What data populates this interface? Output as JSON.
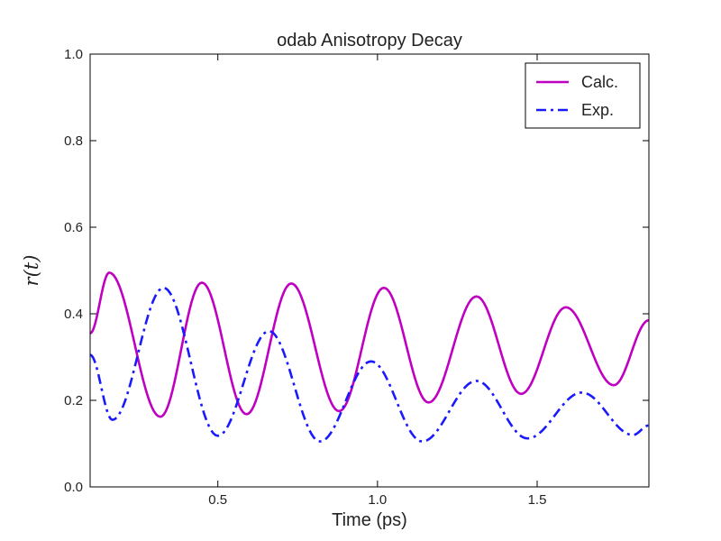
{
  "chart_data": {
    "type": "line",
    "title": "odab Anisotropy Decay",
    "xlabel": "Time (ps)",
    "ylabel": "r(t)",
    "xlim": [
      0.1,
      1.85
    ],
    "ylim": [
      0.0,
      1.0
    ],
    "grid": false,
    "legend": "top-right",
    "xticks": [
      0.5,
      1.0,
      1.5
    ],
    "xtick_labels": [
      "0.5",
      "1.0",
      "1.5"
    ],
    "yticks": [
      0.0,
      0.2,
      0.4,
      0.6,
      0.8,
      1.0
    ],
    "ytick_labels": [
      "0.0",
      "0.2",
      "0.4",
      "0.6",
      "0.8",
      "1.0"
    ],
    "series": [
      {
        "name": "Calc.",
        "color": "#c000c0",
        "style": "solid",
        "x": [
          0.1,
          0.16,
          0.32,
          0.45,
          0.59,
          0.73,
          0.88,
          1.02,
          1.16,
          1.31,
          1.45,
          1.59,
          1.74,
          1.85
        ],
        "y": [
          0.355,
          0.495,
          0.162,
          0.472,
          0.168,
          0.47,
          0.175,
          0.46,
          0.195,
          0.44,
          0.215,
          0.415,
          0.235,
          0.385
        ]
      },
      {
        "name": "Exp.",
        "color": "#1a1aff",
        "style": "dashdot",
        "x": [
          0.1,
          0.17,
          0.33,
          0.5,
          0.66,
          0.82,
          0.98,
          1.14,
          1.31,
          1.47,
          1.64,
          1.8,
          1.85
        ],
        "y": [
          0.305,
          0.155,
          0.46,
          0.118,
          0.36,
          0.105,
          0.29,
          0.105,
          0.245,
          0.112,
          0.218,
          0.12,
          0.142
        ]
      }
    ]
  }
}
